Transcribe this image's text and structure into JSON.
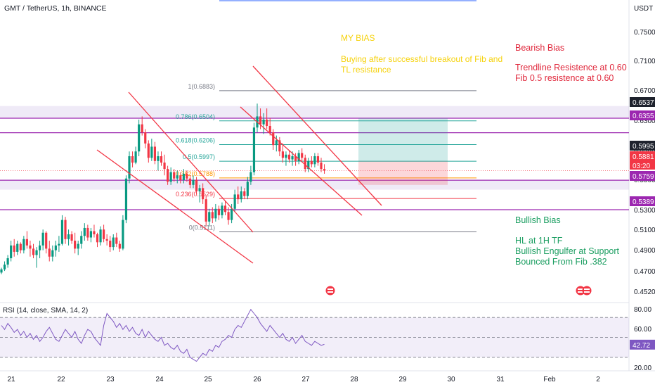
{
  "header": {
    "title": "GMT / TetherUS, 1h, BINANCE",
    "currency": "USDT"
  },
  "chart_data": {
    "type": "candlestick",
    "symbol": "GMT / TetherUS",
    "timeframe": "1h",
    "exchange": "BINANCE",
    "price_axis": {
      "min": 0.44,
      "max": 0.78,
      "ticks": [
        "0.7500",
        "0.7100",
        "0.6700",
        "0.6300",
        "0.5900",
        "0.5500",
        "0.5300",
        "0.5100",
        "0.4900",
        "0.4700",
        "0.4520"
      ],
      "labels": [
        {
          "text": "0.6537",
          "value": 0.6537,
          "color": "#1e222d"
        },
        {
          "text": "0.6355",
          "value": 0.6355,
          "color": "#9c27b0"
        },
        {
          "text": "0.5995",
          "value": 0.5995,
          "color": "#1e222d"
        },
        {
          "text": "0.5881",
          "value": 0.5881,
          "color": "#f23645"
        },
        {
          "text": "03:20",
          "value": 0.582,
          "color": "#f23645"
        },
        {
          "text": "0.5759",
          "value": 0.5759,
          "color": "#9c27b0"
        },
        {
          "text": "0.5389",
          "value": 0.5389,
          "color": "#9c27b0"
        }
      ]
    },
    "time_axis": {
      "days": [
        "21",
        "22",
        "23",
        "24",
        "25",
        "26",
        "27",
        "28",
        "29",
        "30",
        "31",
        "Feb",
        "2"
      ]
    },
    "candles": [
      [
        0.46,
        0.466,
        0.458,
        0.464
      ],
      [
        0.464,
        0.474,
        0.462,
        0.47
      ],
      [
        0.47,
        0.482,
        0.466,
        0.478
      ],
      [
        0.478,
        0.5,
        0.474,
        0.494
      ],
      [
        0.494,
        0.502,
        0.48,
        0.486
      ],
      [
        0.486,
        0.5,
        0.482,
        0.496
      ],
      [
        0.496,
        0.498,
        0.484,
        0.488
      ],
      [
        0.488,
        0.506,
        0.484,
        0.502
      ],
      [
        0.502,
        0.512,
        0.49,
        0.494
      ],
      [
        0.494,
        0.5,
        0.48,
        0.49
      ],
      [
        0.49,
        0.496,
        0.478,
        0.482
      ],
      [
        0.482,
        0.492,
        0.466,
        0.488
      ],
      [
        0.488,
        0.5,
        0.478,
        0.494
      ],
      [
        0.494,
        0.514,
        0.488,
        0.51
      ],
      [
        0.51,
        0.512,
        0.484,
        0.49
      ],
      [
        0.49,
        0.5,
        0.474,
        0.48
      ],
      [
        0.48,
        0.494,
        0.474,
        0.488
      ],
      [
        0.488,
        0.5,
        0.48,
        0.494
      ],
      [
        0.494,
        0.506,
        0.486,
        0.496
      ],
      [
        0.496,
        0.532,
        0.494,
        0.526
      ],
      [
        0.526,
        0.53,
        0.496,
        0.502
      ],
      [
        0.502,
        0.514,
        0.494,
        0.508
      ],
      [
        0.508,
        0.512,
        0.496,
        0.5
      ],
      [
        0.5,
        0.51,
        0.484,
        0.49
      ],
      [
        0.49,
        0.5,
        0.482,
        0.496
      ],
      [
        0.496,
        0.512,
        0.49,
        0.506
      ],
      [
        0.506,
        0.522,
        0.5,
        0.516
      ],
      [
        0.516,
        0.52,
        0.5,
        0.504
      ],
      [
        0.504,
        0.516,
        0.498,
        0.512
      ],
      [
        0.512,
        0.52,
        0.504,
        0.508
      ],
      [
        0.508,
        0.51,
        0.492,
        0.498
      ],
      [
        0.498,
        0.518,
        0.494,
        0.514
      ],
      [
        0.514,
        0.52,
        0.498,
        0.502
      ],
      [
        0.502,
        0.508,
        0.494,
        0.5
      ],
      [
        0.5,
        0.506,
        0.486,
        0.492
      ],
      [
        0.492,
        0.508,
        0.488,
        0.504
      ],
      [
        0.504,
        0.51,
        0.492,
        0.496
      ],
      [
        0.496,
        0.5,
        0.486,
        0.49
      ],
      [
        0.49,
        0.532,
        0.488,
        0.526
      ],
      [
        0.526,
        0.582,
        0.522,
        0.578
      ],
      [
        0.578,
        0.612,
        0.572,
        0.606
      ],
      [
        0.606,
        0.612,
        0.592,
        0.598
      ],
      [
        0.598,
        0.618,
        0.596,
        0.612
      ],
      [
        0.612,
        0.652,
        0.606,
        0.646
      ],
      [
        0.646,
        0.656,
        0.632,
        0.636
      ],
      [
        0.636,
        0.64,
        0.616,
        0.622
      ],
      [
        0.622,
        0.626,
        0.598,
        0.604
      ],
      [
        0.604,
        0.628,
        0.6,
        0.618
      ],
      [
        0.618,
        0.624,
        0.596,
        0.6
      ],
      [
        0.6,
        0.612,
        0.588,
        0.606
      ],
      [
        0.606,
        0.612,
        0.594,
        0.598
      ],
      [
        0.598,
        0.608,
        0.582,
        0.59
      ],
      [
        0.59,
        0.594,
        0.57,
        0.574
      ],
      [
        0.574,
        0.592,
        0.57,
        0.586
      ],
      [
        0.586,
        0.59,
        0.574,
        0.578
      ],
      [
        0.578,
        0.588,
        0.572,
        0.582
      ],
      [
        0.582,
        0.586,
        0.572,
        0.576
      ],
      [
        0.576,
        0.59,
        0.572,
        0.584
      ],
      [
        0.584,
        0.588,
        0.574,
        0.578
      ],
      [
        0.578,
        0.582,
        0.566,
        0.57
      ],
      [
        0.57,
        0.582,
        0.566,
        0.576
      ],
      [
        0.576,
        0.58,
        0.558,
        0.562
      ],
      [
        0.562,
        0.57,
        0.548,
        0.566
      ],
      [
        0.566,
        0.572,
        0.546,
        0.552
      ],
      [
        0.552,
        0.556,
        0.518,
        0.524
      ],
      [
        0.524,
        0.54,
        0.518,
        0.536
      ],
      [
        0.536,
        0.542,
        0.522,
        0.528
      ],
      [
        0.528,
        0.546,
        0.524,
        0.54
      ],
      [
        0.54,
        0.544,
        0.526,
        0.532
      ],
      [
        0.532,
        0.548,
        0.528,
        0.544
      ],
      [
        0.544,
        0.55,
        0.532,
        0.536
      ],
      [
        0.536,
        0.542,
        0.52,
        0.526
      ],
      [
        0.526,
        0.546,
        0.522,
        0.54
      ],
      [
        0.54,
        0.564,
        0.536,
        0.558
      ],
      [
        0.558,
        0.568,
        0.546,
        0.552
      ],
      [
        0.552,
        0.568,
        0.548,
        0.562
      ],
      [
        0.562,
        0.566,
        0.552,
        0.556
      ],
      [
        0.556,
        0.58,
        0.552,
        0.574
      ],
      [
        0.574,
        0.594,
        0.57,
        0.586
      ],
      [
        0.586,
        0.648,
        0.582,
        0.642
      ],
      [
        0.642,
        0.672,
        0.636,
        0.656
      ],
      [
        0.656,
        0.666,
        0.64,
        0.646
      ],
      [
        0.646,
        0.66,
        0.634,
        0.652
      ],
      [
        0.652,
        0.666,
        0.64,
        0.644
      ],
      [
        0.644,
        0.654,
        0.632,
        0.636
      ],
      [
        0.636,
        0.64,
        0.614,
        0.62
      ],
      [
        0.62,
        0.632,
        0.612,
        0.626
      ],
      [
        0.626,
        0.63,
        0.606,
        0.612
      ],
      [
        0.612,
        0.622,
        0.598,
        0.604
      ],
      [
        0.604,
        0.612,
        0.594,
        0.608
      ],
      [
        0.608,
        0.614,
        0.598,
        0.602
      ],
      [
        0.602,
        0.612,
        0.594,
        0.606
      ],
      [
        0.606,
        0.61,
        0.594,
        0.6
      ],
      [
        0.6,
        0.614,
        0.596,
        0.61
      ],
      [
        0.61,
        0.616,
        0.6,
        0.604
      ],
      [
        0.604,
        0.608,
        0.586,
        0.59
      ],
      [
        0.59,
        0.604,
        0.586,
        0.6
      ],
      [
        0.6,
        0.606,
        0.592,
        0.596
      ],
      [
        0.596,
        0.61,
        0.592,
        0.606
      ],
      [
        0.606,
        0.61,
        0.594,
        0.598
      ],
      [
        0.598,
        0.604,
        0.586,
        0.59
      ],
      [
        0.59,
        0.596,
        0.584,
        0.588
      ]
    ],
    "fibonacci": [
      {
        "label": "1(0.6883)",
        "value": 0.6883
      },
      {
        "label": "0.786(0.6504)",
        "value": 0.6504
      },
      {
        "label": "0.618(0.6206)",
        "value": 0.6206
      },
      {
        "label": "0.5(0.5997)",
        "value": 0.5997
      },
      {
        "label": "0.382(0.5788)",
        "value": 0.5788
      },
      {
        "label": "0.236(0.5529)",
        "value": 0.5529
      },
      {
        "label": "0(0.5111)",
        "value": 0.5111
      }
    ],
    "horizontal_levels": [
      0.6537,
      0.6355,
      0.5759,
      0.5389
    ],
    "zones": [
      {
        "from": 0.6537,
        "to": 0.669
      },
      {
        "from": 0.564,
        "to": 0.5759
      }
    ],
    "position": {
      "target": 0.6537,
      "entry": 0.5995,
      "stop": 0.57
    },
    "notes": {
      "my_bias_title": "MY BIAS",
      "my_bias_line1": "Buying after successful breakout of Fib and",
      "my_bias_line2": "TL resistance",
      "bearish_title": "Bearish Bias",
      "bearish_line1": "Trendline Resistence at 0.60",
      "bearish_line2": "Fib 0.5 resistence at 0.60",
      "bullish_title": "Bullish Bias",
      "bullish_line1": "HL at 1H TF",
      "bullish_line2": "Bullish Engulfer at Support",
      "bullish_line3": "Bounced From Fib .382"
    },
    "rsi": {
      "label": "RSI (14, close, SMA, 14, 2)",
      "value_label": "42.72",
      "value": 42.72,
      "min": 20,
      "max": 80,
      "ticks": [
        "80.00",
        "60.00",
        "20.00"
      ],
      "upper_band": 70,
      "lower_band": 30,
      "mid": 50,
      "values": [
        62,
        58,
        64,
        60,
        55,
        58,
        52,
        56,
        50,
        54,
        48,
        52,
        46,
        50,
        56,
        60,
        54,
        48,
        46,
        52,
        58,
        54,
        50,
        56,
        48,
        44,
        52,
        58,
        56,
        50,
        46,
        42,
        62,
        74,
        70,
        66,
        60,
        64,
        58,
        62,
        56,
        60,
        54,
        52,
        58,
        50,
        56,
        52,
        48,
        46,
        50,
        42,
        44,
        40,
        38,
        42,
        36,
        34,
        38,
        30,
        28,
        26,
        30,
        34,
        32,
        38,
        36,
        42,
        40,
        46,
        48,
        52,
        50,
        58,
        62,
        60,
        66,
        72,
        78,
        74,
        70,
        64,
        60,
        56,
        62,
        58,
        54,
        50,
        54,
        48,
        46,
        50,
        44,
        48,
        52,
        46,
        44,
        42,
        46,
        44,
        42,
        43
      ]
    },
    "colors": {
      "up": "#089981",
      "down": "#f23645",
      "zone": "#d1c4e9",
      "level": "#9c27b0",
      "fib_mid": "#26a69a",
      "fib_gold": "#ff9800",
      "trendline": "#f23645",
      "note_yellow": "#f6d20c",
      "note_red": "#e0283c",
      "note_green": "#1b9e61"
    }
  }
}
